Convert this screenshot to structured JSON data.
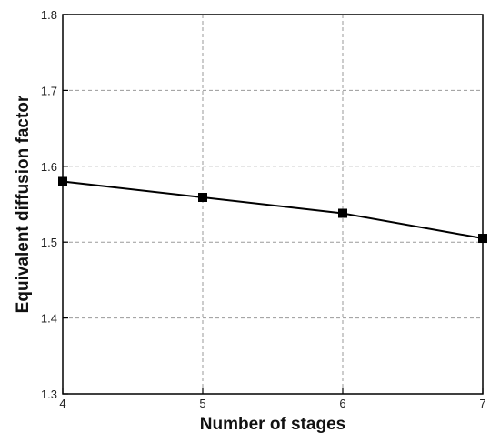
{
  "chart_data": {
    "type": "line",
    "xlabel": "Number of stages",
    "ylabel": "Equivalent diffusion factor",
    "xlim": [
      4,
      7
    ],
    "ylim": [
      1.3,
      1.8
    ],
    "xticks": [
      "4",
      "5",
      "6",
      "7"
    ],
    "yticks": [
      "1.3",
      "1.4",
      "1.5",
      "1.6",
      "1.7",
      "1.8"
    ],
    "grid": true,
    "series": [
      {
        "x": [
          4,
          5,
          6,
          7
        ],
        "y": [
          1.58,
          1.559,
          1.538,
          1.505
        ],
        "marker": "square",
        "color": "#000000"
      }
    ]
  }
}
